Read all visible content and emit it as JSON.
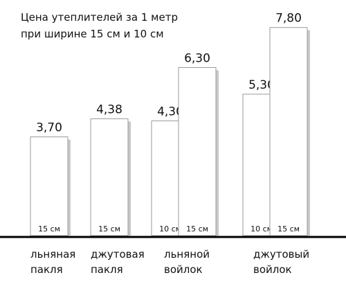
{
  "chart_data": {
    "type": "bar",
    "title_lines": [
      "Цена утеплителей за 1 метр",
      "при ширине 15 см и 10 см"
    ],
    "categories": [
      {
        "lines": [
          "льняная",
          "пакля"
        ]
      },
      {
        "lines": [
          "джутовая",
          "пакля"
        ]
      },
      {
        "lines": [
          "льняной",
          "войлок"
        ]
      },
      {
        "lines": [
          "джутовый",
          "войлок"
        ]
      }
    ],
    "bars": [
      {
        "category": 0,
        "width_label": "15 см",
        "value": 3.7,
        "value_label": "3,70"
      },
      {
        "category": 1,
        "width_label": "15 см",
        "value": 4.38,
        "value_label": "4,38"
      },
      {
        "category": 2,
        "width_label": "10 см",
        "value": 4.3,
        "value_label": "4,30"
      },
      {
        "category": 2,
        "width_label": "15 см",
        "value": 6.3,
        "value_label": "6,30"
      },
      {
        "category": 3,
        "width_label": "10 см",
        "value": 5.3,
        "value_label": "5,30"
      },
      {
        "category": 3,
        "width_label": "15 см",
        "value": 7.8,
        "value_label": "7,80"
      }
    ],
    "ylim": [
      0,
      8
    ],
    "grid": false,
    "legend": "none",
    "colors": {
      "bar_fill": "#ffffff",
      "bar_stroke": "#9a9a9a",
      "bar_shadow": "#c8c8c8",
      "baseline": "#000000"
    }
  }
}
